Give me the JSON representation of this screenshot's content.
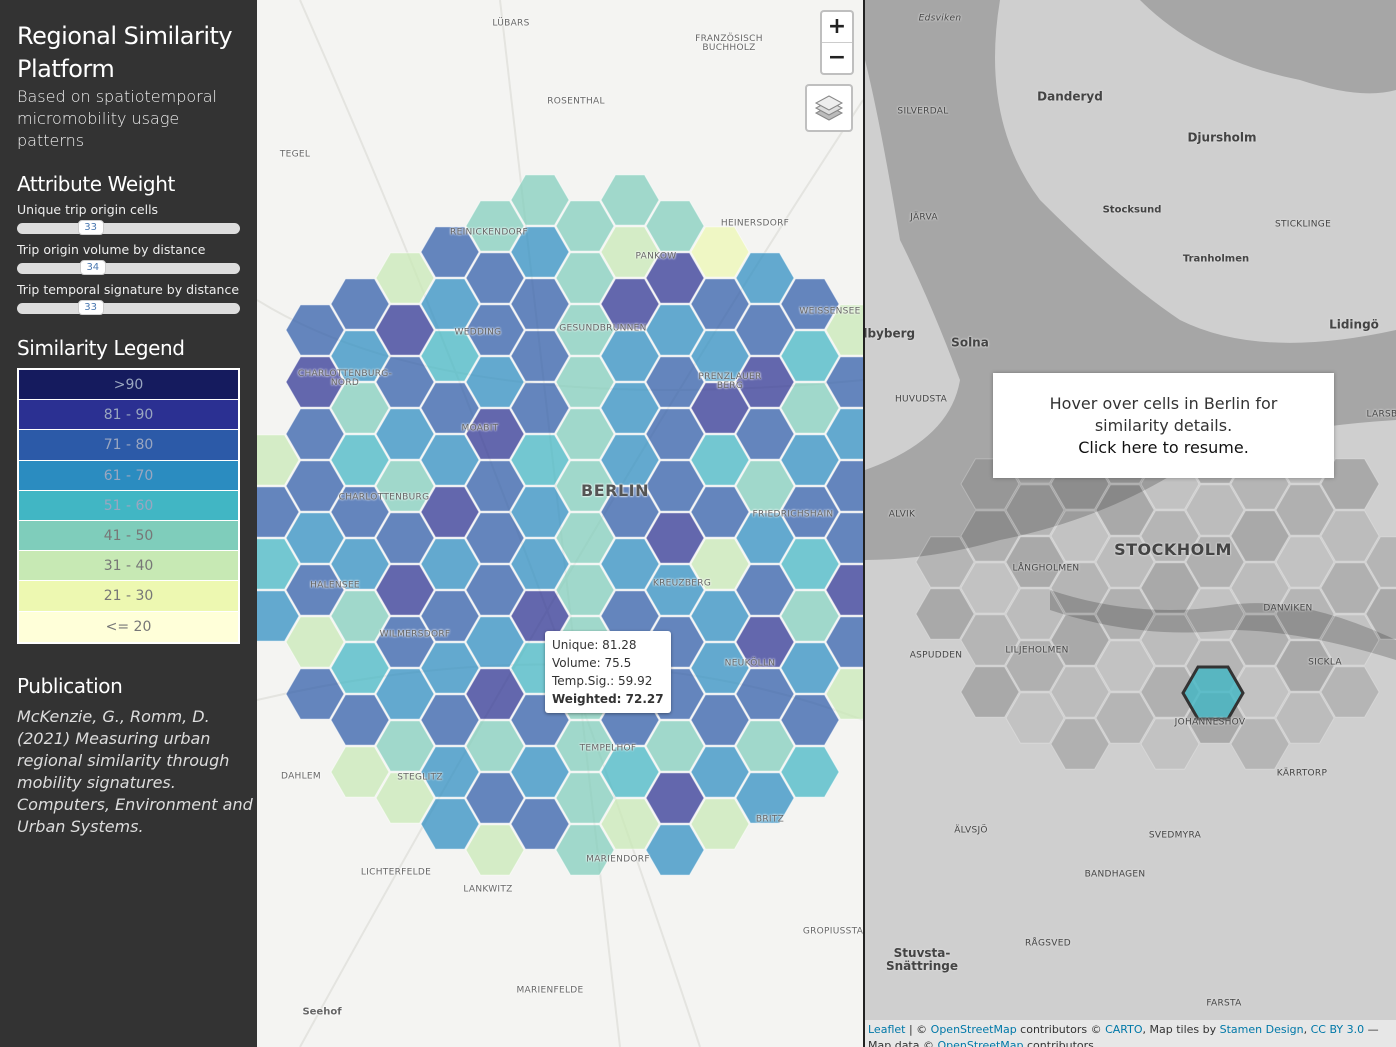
{
  "sidebar": {
    "title": "Regional Similarity Platform",
    "subtitle": "Based on spatiotemporal micromobility usage patterns",
    "weights_heading": "Attribute Weight",
    "sliders": [
      {
        "label": "Unique trip origin cells",
        "value": 33
      },
      {
        "label": "Trip origin volume by distance",
        "value": 34
      },
      {
        "label": "Trip temporal signature by distance",
        "value": 33
      }
    ],
    "legend_heading": "Similarity Legend",
    "legend": [
      {
        "label": ">90",
        "color": "#151b5e"
      },
      {
        "label": "81 - 90",
        "color": "#2b3092"
      },
      {
        "label": "71 - 80",
        "color": "#2c5aa8"
      },
      {
        "label": "61 - 70",
        "color": "#2b8cc0"
      },
      {
        "label": "51 - 60",
        "color": "#41b6c4"
      },
      {
        "label": "41 - 50",
        "color": "#7fcdbb"
      },
      {
        "label": "31 - 40",
        "color": "#c7e9b4"
      },
      {
        "label": "21 - 30",
        "color": "#edf8b1"
      },
      {
        "label": "<= 20",
        "color": "#ffffd9"
      }
    ],
    "publication_heading": "Publication",
    "publication": "McKenzie, G., Romm, D. (2021) Measuring urban regional similarity through mobility signatures. Computers, Environment and Urban Systems."
  },
  "berlin_map": {
    "zoom_in": "+",
    "zoom_out": "−",
    "labels": [
      "LÜBARS",
      "FRANZÖSISCH\nBUCHHOLZ",
      "ROSENTHAL",
      "TEGEL",
      "REINICKENDORF",
      "PANKOW",
      "HEINERSDORF",
      "WEDDING",
      "GESUNDBRUNNEN",
      "WEISSENSEE",
      "CHARLOTTENBURG-\nNORD",
      "PRENZLAUER\nBERG",
      "MOABIT",
      "BERLIN",
      "CHARLOTTENBURG",
      "FRIEDRICHSHAIN",
      "HALENSEE",
      "KREUZBERG",
      "WILMERSDORF",
      "NEUKÖLLN",
      "TEMPELHOF",
      "STEGLITZ",
      "DAHLEM",
      "BRITZ",
      "MARIENDORF",
      "LICHTERFELDE",
      "LANKWITZ",
      "GROPIUSSTA",
      "MARIENFELDE",
      "Seehof"
    ],
    "tooltip": [
      "Unique: 81.28",
      "Volume: 75.5",
      "Temp.Sig.: 59.92",
      "Weighted: 72.27"
    ]
  },
  "stockholm_map": {
    "labels": [
      "Edsviken",
      "Danderyd",
      "SILVERDAL",
      "Djursholm",
      "Stocksund",
      "JÄRVA",
      "STICKLINGE",
      "Tranholmen",
      "Ilbyberg",
      "Solna",
      "Lidingö",
      "HUVUDSTA",
      "LARSB",
      "ALVIK",
      "STOCKHOLM",
      "LÅNGHOLMEN",
      "DANVIKEN",
      "ASPUDDEN",
      "LILJEHOLMEN",
      "SICKLA",
      "JOHANNESHOV",
      "KÄRRTORP",
      "ÄLVSJÖ",
      "SVEDMYRA",
      "BANDHAGEN",
      "RÅGSVED",
      "Stuvsta-\nSnättringe",
      "FARSTA"
    ],
    "info": "Hover over cells in Berlin for similarity details.",
    "info_link": "Click here to resume.",
    "attribution": [
      {
        "text": "Leaflet",
        "link": true
      },
      {
        "text": " | © "
      },
      {
        "text": "OpenStreetMap",
        "link": true
      },
      {
        "text": " contributors © "
      },
      {
        "text": "CARTO",
        "link": true
      },
      {
        "text": ", Map tiles by "
      },
      {
        "text": "Stamen Design",
        "link": true
      },
      {
        "text": ", "
      },
      {
        "text": "CC BY 3.0",
        "link": true
      },
      {
        "text": " — Map data © "
      },
      {
        "text": "OpenStreetMap",
        "link": true
      },
      {
        "text": " contributors"
      }
    ]
  }
}
